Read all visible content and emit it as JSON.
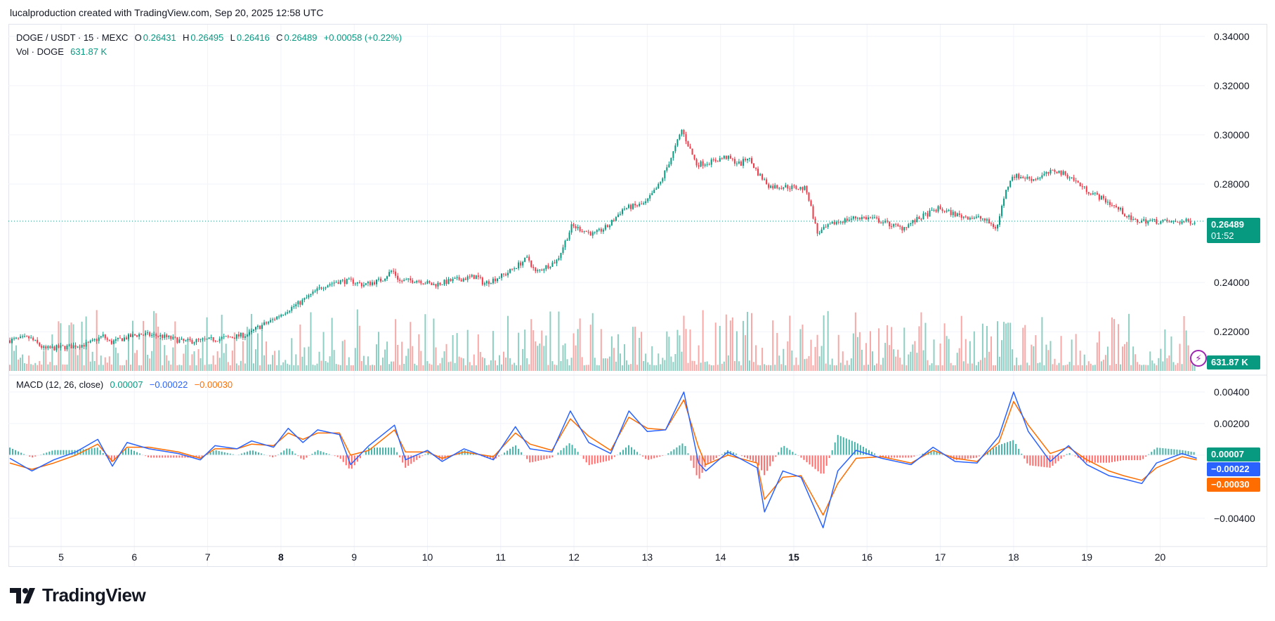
{
  "credit": "lucalproduction created with TradingView.com, Sep 20, 2025 12:58 UTC",
  "legend": {
    "symbol": "DOGE / USDT · 15 · MEXC",
    "o_label": "O",
    "o_value": "0.26431",
    "h_label": "H",
    "h_value": "0.26495",
    "l_label": "L",
    "l_value": "0.26416",
    "c_label": "C",
    "c_value": "0.26489",
    "change": "+0.00058 (+0.22%)",
    "vol_label": "Vol · DOGE",
    "vol_value": "631.87 K",
    "macd_label": "MACD (12, 26, close)",
    "macd_hist": "0.00007",
    "macd_line": "−0.00022",
    "macd_signal": "−0.00030"
  },
  "tags": {
    "price": "0.26489",
    "countdown": "01:52",
    "volume": "631.87 K",
    "hist": "0.00007",
    "macd": "−0.00022",
    "signal": "−0.00030"
  },
  "colors": {
    "up": "#089981",
    "down": "#f23645",
    "macd": "#2962ff",
    "signal": "#ff6d00",
    "vol_up": "#8fcfc3",
    "vol_down": "#f7a9a7",
    "indicator_icon": "#9c27b0"
  },
  "indicator_icon": "lightning-icon",
  "brand": "TradingView",
  "chart_data": [
    {
      "type": "candlestick",
      "title": "DOGE / USDT · 15 · MEXC",
      "x_ticks": [
        "5",
        "6",
        "7",
        "8",
        "9",
        "10",
        "11",
        "12",
        "13",
        "14",
        "15",
        "16",
        "17",
        "18",
        "19",
        "20"
      ],
      "bold_ticks": [
        "8",
        "15"
      ],
      "y_ticks": [
        "0.34000",
        "0.32000",
        "0.30000",
        "0.28000",
        "0.24000",
        "0.22000"
      ],
      "ylim": [
        0.2035,
        0.3445
      ],
      "last_price": 0.26489,
      "grid": true,
      "close_path": [
        {
          "x": 4.3,
          "y": 0.2165
        },
        {
          "x": 4.6,
          "y": 0.2175
        },
        {
          "x": 4.8,
          "y": 0.213
        },
        {
          "x": 5.1,
          "y": 0.2138
        },
        {
          "x": 5.4,
          "y": 0.215
        },
        {
          "x": 5.6,
          "y": 0.2183
        },
        {
          "x": 5.7,
          "y": 0.2155
        },
        {
          "x": 5.9,
          "y": 0.2175
        },
        {
          "x": 6.1,
          "y": 0.219
        },
        {
          "x": 6.4,
          "y": 0.2182
        },
        {
          "x": 6.7,
          "y": 0.216
        },
        {
          "x": 7.0,
          "y": 0.2165
        },
        {
          "x": 7.4,
          "y": 0.218
        },
        {
          "x": 7.6,
          "y": 0.219
        },
        {
          "x": 7.7,
          "y": 0.2215
        },
        {
          "x": 7.9,
          "y": 0.2245
        },
        {
          "x": 8.1,
          "y": 0.2285
        },
        {
          "x": 8.3,
          "y": 0.232
        },
        {
          "x": 8.6,
          "y": 0.2385
        },
        {
          "x": 8.8,
          "y": 0.2405
        },
        {
          "x": 9.0,
          "y": 0.2405
        },
        {
          "x": 9.15,
          "y": 0.239
        },
        {
          "x": 9.4,
          "y": 0.241
        },
        {
          "x": 9.55,
          "y": 0.245
        },
        {
          "x": 9.65,
          "y": 0.2405
        },
        {
          "x": 9.9,
          "y": 0.241
        },
        {
          "x": 10.1,
          "y": 0.239
        },
        {
          "x": 10.4,
          "y": 0.241
        },
        {
          "x": 10.7,
          "y": 0.2425
        },
        {
          "x": 10.8,
          "y": 0.2395
        },
        {
          "x": 11.1,
          "y": 0.2435
        },
        {
          "x": 11.4,
          "y": 0.25
        },
        {
          "x": 11.5,
          "y": 0.244
        },
        {
          "x": 11.8,
          "y": 0.249
        },
        {
          "x": 12.0,
          "y": 0.263
        },
        {
          "x": 12.3,
          "y": 0.2595
        },
        {
          "x": 12.5,
          "y": 0.263
        },
        {
          "x": 12.7,
          "y": 0.27
        },
        {
          "x": 13.0,
          "y": 0.272
        },
        {
          "x": 13.2,
          "y": 0.28
        },
        {
          "x": 13.4,
          "y": 0.294
        },
        {
          "x": 13.5,
          "y": 0.302
        },
        {
          "x": 13.6,
          "y": 0.295
        },
        {
          "x": 13.7,
          "y": 0.288
        },
        {
          "x": 13.9,
          "y": 0.289
        },
        {
          "x": 14.1,
          "y": 0.291
        },
        {
          "x": 14.3,
          "y": 0.288
        },
        {
          "x": 14.4,
          "y": 0.291
        },
        {
          "x": 14.55,
          "y": 0.284
        },
        {
          "x": 14.7,
          "y": 0.279
        },
        {
          "x": 14.9,
          "y": 0.279
        },
        {
          "x": 15.2,
          "y": 0.278
        },
        {
          "x": 15.35,
          "y": 0.26
        },
        {
          "x": 15.6,
          "y": 0.2645
        },
        {
          "x": 15.9,
          "y": 0.2665
        },
        {
          "x": 16.1,
          "y": 0.266
        },
        {
          "x": 16.5,
          "y": 0.262
        },
        {
          "x": 16.8,
          "y": 0.267
        },
        {
          "x": 17.0,
          "y": 0.27
        },
        {
          "x": 17.3,
          "y": 0.267
        },
        {
          "x": 17.6,
          "y": 0.266
        },
        {
          "x": 17.8,
          "y": 0.262
        },
        {
          "x": 17.9,
          "y": 0.275
        },
        {
          "x": 18.0,
          "y": 0.2835
        },
        {
          "x": 18.3,
          "y": 0.282
        },
        {
          "x": 18.6,
          "y": 0.2855
        },
        {
          "x": 18.8,
          "y": 0.283
        },
        {
          "x": 19.0,
          "y": 0.278
        },
        {
          "x": 19.3,
          "y": 0.273
        },
        {
          "x": 19.5,
          "y": 0.269
        },
        {
          "x": 19.65,
          "y": 0.265
        },
        {
          "x": 19.9,
          "y": 0.265
        },
        {
          "x": 20.2,
          "y": 0.2645
        },
        {
          "x": 20.5,
          "y": 0.2649
        }
      ]
    },
    {
      "type": "bar",
      "title": "Vol · DOGE",
      "last_value": "631.87 K"
    },
    {
      "type": "line",
      "title": "MACD (12, 26, close)",
      "y_ticks": [
        "0.00400",
        "0.00200",
        "−0.00400"
      ],
      "ylim": [
        -0.0057,
        0.0048
      ],
      "series": [
        {
          "name": "MACD",
          "points": [
            {
              "x": 4.3,
              "y": -0.0002
            },
            {
              "x": 4.6,
              "y": -0.001
            },
            {
              "x": 4.9,
              "y": -0.0003
            },
            {
              "x": 5.2,
              "y": 0.0002
            },
            {
              "x": 5.5,
              "y": 0.001
            },
            {
              "x": 5.7,
              "y": -0.0007
            },
            {
              "x": 5.9,
              "y": 0.0008
            },
            {
              "x": 6.2,
              "y": 0.0004
            },
            {
              "x": 6.6,
              "y": 0.0001
            },
            {
              "x": 6.9,
              "y": -0.0003
            },
            {
              "x": 7.1,
              "y": 0.0006
            },
            {
              "x": 7.4,
              "y": 0.0004
            },
            {
              "x": 7.6,
              "y": 0.0009
            },
            {
              "x": 7.9,
              "y": 0.0005
            },
            {
              "x": 8.1,
              "y": 0.0017
            },
            {
              "x": 8.3,
              "y": 0.0008
            },
            {
              "x": 8.5,
              "y": 0.0016
            },
            {
              "x": 8.8,
              "y": 0.0013
            },
            {
              "x": 8.95,
              "y": -0.0006
            },
            {
              "x": 9.2,
              "y": 0.0006
            },
            {
              "x": 9.55,
              "y": 0.0019
            },
            {
              "x": 9.7,
              "y": -0.0003
            },
            {
              "x": 10.0,
              "y": 0.0003
            },
            {
              "x": 10.2,
              "y": -0.0004
            },
            {
              "x": 10.5,
              "y": 0.0004
            },
            {
              "x": 10.9,
              "y": -0.0003
            },
            {
              "x": 11.2,
              "y": 0.0018
            },
            {
              "x": 11.4,
              "y": 0.0004
            },
            {
              "x": 11.7,
              "y": 0.0002
            },
            {
              "x": 11.95,
              "y": 0.0028
            },
            {
              "x": 12.2,
              "y": 0.0008
            },
            {
              "x": 12.5,
              "y": 0.0001
            },
            {
              "x": 12.75,
              "y": 0.0028
            },
            {
              "x": 13.0,
              "y": 0.0015
            },
            {
              "x": 13.25,
              "y": 0.0016
            },
            {
              "x": 13.5,
              "y": 0.004
            },
            {
              "x": 13.7,
              "y": -0.0005
            },
            {
              "x": 13.8,
              "y": -0.001
            },
            {
              "x": 14.1,
              "y": 0.0002
            },
            {
              "x": 14.5,
              "y": -0.0008
            },
            {
              "x": 14.6,
              "y": -0.0036
            },
            {
              "x": 14.85,
              "y": -0.001
            },
            {
              "x": 15.1,
              "y": -0.0014
            },
            {
              "x": 15.4,
              "y": -0.0046
            },
            {
              "x": 15.6,
              "y": -0.001
            },
            {
              "x": 15.85,
              "y": 0.0003
            },
            {
              "x": 16.2,
              "y": -0.0002
            },
            {
              "x": 16.6,
              "y": -0.0006
            },
            {
              "x": 16.9,
              "y": 0.0005
            },
            {
              "x": 17.2,
              "y": -0.0004
            },
            {
              "x": 17.5,
              "y": -0.0005
            },
            {
              "x": 17.8,
              "y": 0.0012
            },
            {
              "x": 18.0,
              "y": 0.004
            },
            {
              "x": 18.2,
              "y": 0.0015
            },
            {
              "x": 18.5,
              "y": -0.0004
            },
            {
              "x": 18.75,
              "y": 0.0006
            },
            {
              "x": 19.0,
              "y": -0.0006
            },
            {
              "x": 19.3,
              "y": -0.0013
            },
            {
              "x": 19.5,
              "y": -0.0015
            },
            {
              "x": 19.75,
              "y": -0.0018
            },
            {
              "x": 19.95,
              "y": -0.0005
            },
            {
              "x": 20.3,
              "y": 0.0001
            },
            {
              "x": 20.5,
              "y": -0.0002
            }
          ]
        },
        {
          "name": "Signal",
          "points": [
            {
              "x": 4.3,
              "y": -0.0005
            },
            {
              "x": 4.6,
              "y": -0.0009
            },
            {
              "x": 4.9,
              "y": -0.0005
            },
            {
              "x": 5.2,
              "y": 0.0
            },
            {
              "x": 5.5,
              "y": 0.0007
            },
            {
              "x": 5.7,
              "y": -0.0004
            },
            {
              "x": 5.9,
              "y": 0.0005
            },
            {
              "x": 6.2,
              "y": 0.0005
            },
            {
              "x": 6.6,
              "y": 0.0002
            },
            {
              "x": 6.9,
              "y": -0.0002
            },
            {
              "x": 7.1,
              "y": 0.0004
            },
            {
              "x": 7.4,
              "y": 0.0004
            },
            {
              "x": 7.6,
              "y": 0.0007
            },
            {
              "x": 7.9,
              "y": 0.0006
            },
            {
              "x": 8.1,
              "y": 0.0014
            },
            {
              "x": 8.3,
              "y": 0.001
            },
            {
              "x": 8.5,
              "y": 0.0014
            },
            {
              "x": 8.8,
              "y": 0.0014
            },
            {
              "x": 8.95,
              "y": 0.0
            },
            {
              "x": 9.2,
              "y": 0.0003
            },
            {
              "x": 9.55,
              "y": 0.0016
            },
            {
              "x": 9.7,
              "y": 0.0002
            },
            {
              "x": 10.0,
              "y": 0.0002
            },
            {
              "x": 10.2,
              "y": -0.0002
            },
            {
              "x": 10.5,
              "y": 0.0002
            },
            {
              "x": 10.9,
              "y": -0.0001
            },
            {
              "x": 11.2,
              "y": 0.0014
            },
            {
              "x": 11.4,
              "y": 0.0007
            },
            {
              "x": 11.7,
              "y": 0.0003
            },
            {
              "x": 11.95,
              "y": 0.0023
            },
            {
              "x": 12.2,
              "y": 0.0012
            },
            {
              "x": 12.5,
              "y": 0.0003
            },
            {
              "x": 12.75,
              "y": 0.0024
            },
            {
              "x": 13.0,
              "y": 0.0017
            },
            {
              "x": 13.25,
              "y": 0.0016
            },
            {
              "x": 13.5,
              "y": 0.0035
            },
            {
              "x": 13.7,
              "y": 0.0005
            },
            {
              "x": 13.8,
              "y": -0.0006
            },
            {
              "x": 14.1,
              "y": 0.0
            },
            {
              "x": 14.5,
              "y": -0.0005
            },
            {
              "x": 14.6,
              "y": -0.0028
            },
            {
              "x": 14.85,
              "y": -0.0014
            },
            {
              "x": 15.1,
              "y": -0.0013
            },
            {
              "x": 15.4,
              "y": -0.0038
            },
            {
              "x": 15.6,
              "y": -0.0018
            },
            {
              "x": 15.85,
              "y": -0.0002
            },
            {
              "x": 16.2,
              "y": -0.0001
            },
            {
              "x": 16.6,
              "y": -0.0005
            },
            {
              "x": 16.9,
              "y": 0.0003
            },
            {
              "x": 17.2,
              "y": -0.0002
            },
            {
              "x": 17.5,
              "y": -0.0004
            },
            {
              "x": 17.8,
              "y": 0.0008
            },
            {
              "x": 18.0,
              "y": 0.0034
            },
            {
              "x": 18.2,
              "y": 0.0019
            },
            {
              "x": 18.5,
              "y": 0.0001
            },
            {
              "x": 18.75,
              "y": 0.0005
            },
            {
              "x": 19.0,
              "y": -0.0003
            },
            {
              "x": 19.3,
              "y": -0.001
            },
            {
              "x": 19.5,
              "y": -0.0013
            },
            {
              "x": 19.75,
              "y": -0.0016
            },
            {
              "x": 19.95,
              "y": -0.0008
            },
            {
              "x": 20.3,
              "y": -0.0001
            },
            {
              "x": 20.5,
              "y": -0.0003
            }
          ]
        }
      ]
    }
  ]
}
